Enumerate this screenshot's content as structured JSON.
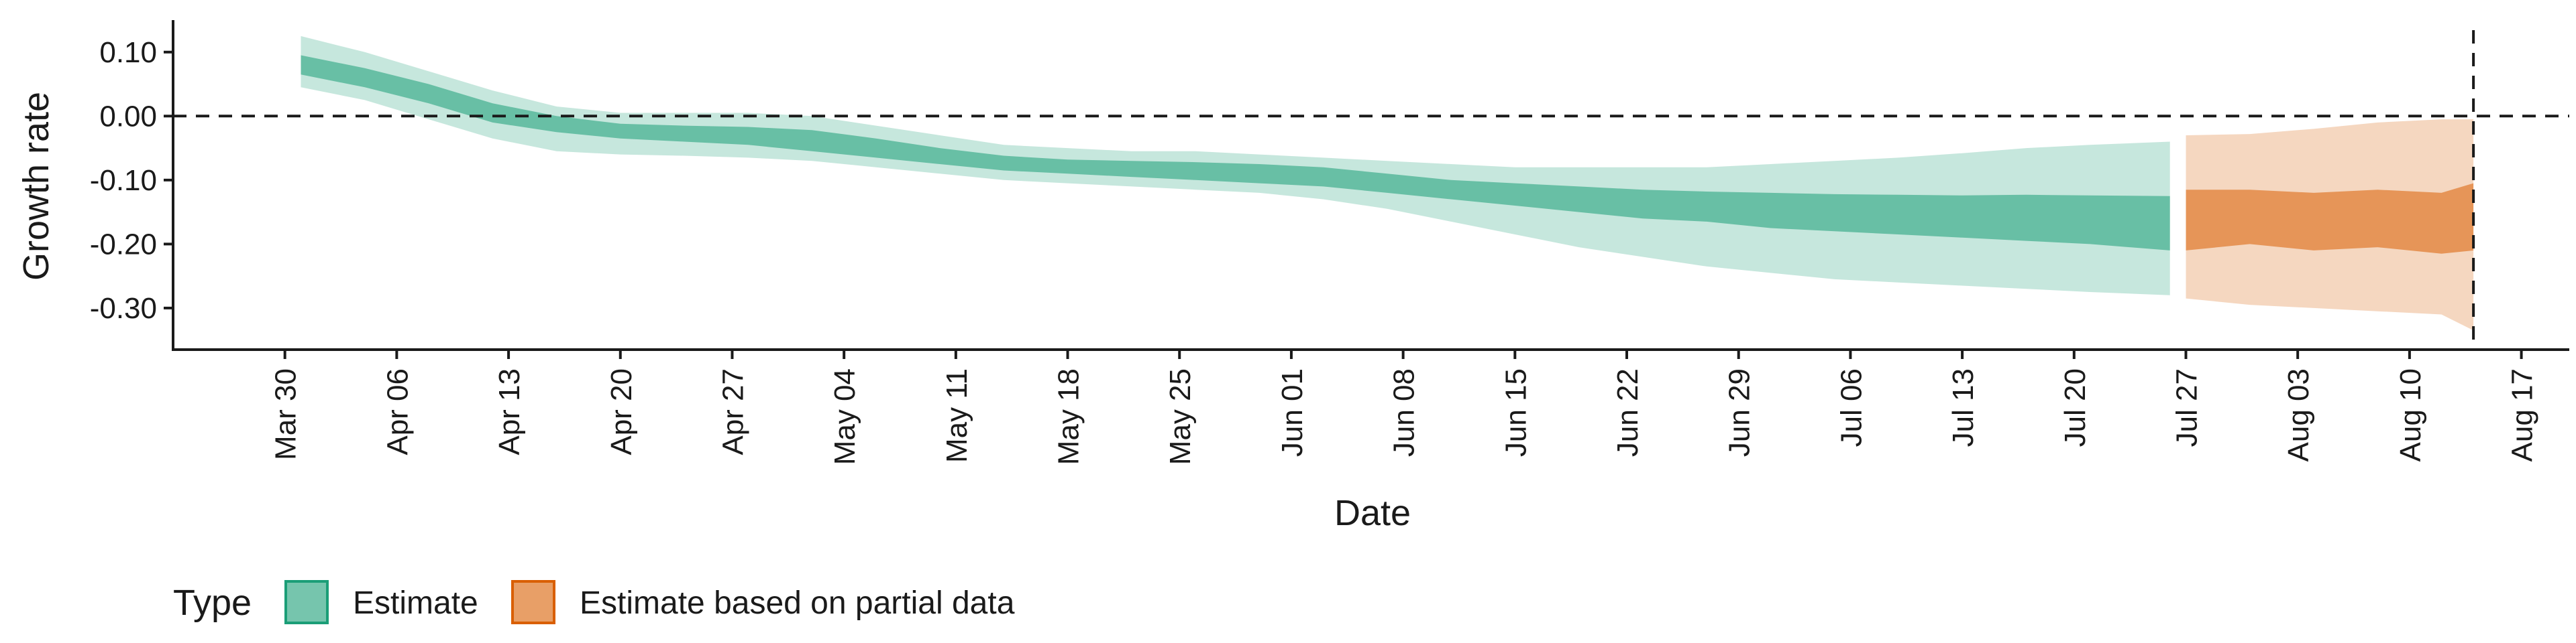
{
  "chart_data": {
    "type": "area",
    "xlabel": "Date",
    "ylabel": "Growth rate",
    "x_ticks": [
      "Mar 30",
      "Apr 06",
      "Apr 13",
      "Apr 20",
      "Apr 27",
      "May 04",
      "May 11",
      "May 18",
      "May 25",
      "Jun 01",
      "Jun 08",
      "Jun 15",
      "Jun 22",
      "Jun 29",
      "Jul 06",
      "Jul 13",
      "Jul 20",
      "Jul 27",
      "Aug 03",
      "Aug 10",
      "Aug 17"
    ],
    "y_ticks": [
      "0.10",
      "0.00",
      "-0.10",
      "-0.20",
      "-0.30"
    ],
    "y_tick_values": [
      0.1,
      0.0,
      -0.1,
      -0.2,
      -0.3
    ],
    "x_range_days": [
      -7,
      143
    ],
    "ylim": [
      -0.365,
      0.15
    ],
    "reference_lines": {
      "horizontal_y": 0.0,
      "vertical_date": "Aug 14"
    },
    "legend": {
      "title": "Type",
      "position": "bottom-left",
      "items": [
        {
          "label": "Estimate",
          "color": "#1b9e77"
        },
        {
          "label": "Estimate based on partial data",
          "color": "#d95f02"
        }
      ]
    },
    "series": [
      {
        "name": "Estimate",
        "color": "#1b9e77",
        "x": [
          "Mar 31",
          "Apr 04",
          "Apr 08",
          "Apr 12",
          "Apr 16",
          "Apr 20",
          "Apr 24",
          "Apr 28",
          "May 02",
          "May 06",
          "May 10",
          "May 14",
          "May 18",
          "May 22",
          "May 26",
          "May 30",
          "Jun 03",
          "Jun 07",
          "Jun 11",
          "Jun 15",
          "Jun 19",
          "Jun 23",
          "Jun 27",
          "Jul 01",
          "Jul 05",
          "Jul 09",
          "Jul 13",
          "Jul 17",
          "Jul 21",
          "Jul 26"
        ],
        "median": [
          0.08,
          0.06,
          0.035,
          0.005,
          -0.015,
          -0.025,
          -0.028,
          -0.03,
          -0.037,
          -0.05,
          -0.065,
          -0.075,
          -0.08,
          -0.082,
          -0.085,
          -0.088,
          -0.095,
          -0.105,
          -0.115,
          -0.12,
          -0.128,
          -0.135,
          -0.14,
          -0.145,
          -0.15,
          -0.152,
          -0.155,
          -0.158,
          -0.162,
          -0.165
        ],
        "inner_lower": [
          0.065,
          0.045,
          0.02,
          -0.01,
          -0.025,
          -0.035,
          -0.04,
          -0.045,
          -0.055,
          -0.065,
          -0.075,
          -0.085,
          -0.09,
          -0.095,
          -0.1,
          -0.105,
          -0.11,
          -0.12,
          -0.13,
          -0.14,
          -0.15,
          -0.16,
          -0.165,
          -0.175,
          -0.18,
          -0.185,
          -0.19,
          -0.195,
          -0.2,
          -0.21
        ],
        "inner_upper": [
          0.095,
          0.075,
          0.05,
          0.02,
          0.0,
          -0.012,
          -0.015,
          -0.017,
          -0.022,
          -0.035,
          -0.05,
          -0.062,
          -0.068,
          -0.07,
          -0.072,
          -0.075,
          -0.08,
          -0.09,
          -0.1,
          -0.105,
          -0.11,
          -0.115,
          -0.118,
          -0.12,
          -0.122,
          -0.123,
          -0.124,
          -0.123,
          -0.124,
          -0.125
        ],
        "outer_lower": [
          0.045,
          0.025,
          -0.005,
          -0.035,
          -0.055,
          -0.06,
          -0.062,
          -0.065,
          -0.07,
          -0.08,
          -0.09,
          -0.1,
          -0.105,
          -0.11,
          -0.115,
          -0.12,
          -0.13,
          -0.145,
          -0.165,
          -0.185,
          -0.205,
          -0.22,
          -0.235,
          -0.245,
          -0.255,
          -0.26,
          -0.265,
          -0.27,
          -0.275,
          -0.28
        ],
        "outer_upper": [
          0.125,
          0.1,
          0.07,
          0.04,
          0.015,
          0.005,
          0.005,
          0.005,
          0.0,
          -0.015,
          -0.03,
          -0.045,
          -0.05,
          -0.055,
          -0.055,
          -0.06,
          -0.065,
          -0.07,
          -0.075,
          -0.08,
          -0.08,
          -0.08,
          -0.08,
          -0.075,
          -0.07,
          -0.065,
          -0.058,
          -0.05,
          -0.045,
          -0.04
        ]
      },
      {
        "name": "Estimate based on partial data",
        "color": "#d95f02",
        "x": [
          "Jul 27",
          "Jul 31",
          "Aug 04",
          "Aug 08",
          "Aug 12",
          "Aug 14"
        ],
        "median": [
          -0.16,
          -0.16,
          -0.165,
          -0.16,
          -0.165,
          -0.155
        ],
        "inner_lower": [
          -0.21,
          -0.2,
          -0.21,
          -0.205,
          -0.215,
          -0.21
        ],
        "inner_upper": [
          -0.115,
          -0.115,
          -0.12,
          -0.115,
          -0.12,
          -0.105
        ],
        "outer_lower": [
          -0.285,
          -0.295,
          -0.3,
          -0.305,
          -0.31,
          -0.335
        ],
        "outer_upper": [
          -0.03,
          -0.028,
          -0.02,
          -0.01,
          -0.005,
          -0.005
        ]
      }
    ]
  }
}
